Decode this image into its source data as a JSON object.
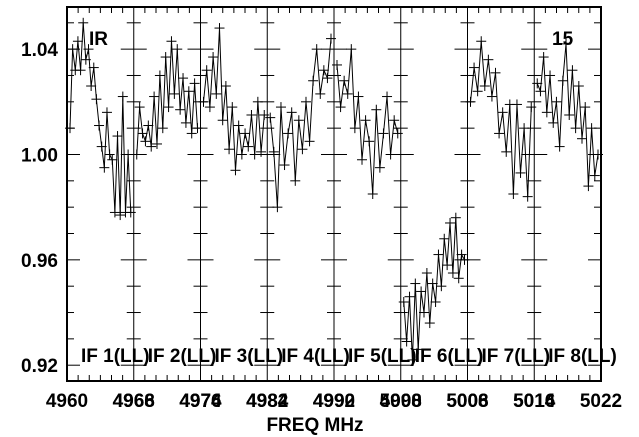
{
  "chart_data": {
    "type": "line",
    "y_ticks": [
      "1.04",
      "1.00",
      "0.96",
      "0.92"
    ],
    "ylim": [
      0.914,
      1.056
    ],
    "xlabel": "FREQ MHz",
    "x_tick_labels": [
      "4960",
      "4966",
      "4968",
      "4974",
      "4976",
      "4982",
      "4984",
      "4990",
      "4992",
      "4998",
      "5000",
      "5006",
      "5008",
      "5014",
      "5016",
      "5022"
    ],
    "annotations": [
      "IR",
      "15"
    ],
    "panels": [
      {
        "label": "IF 1(LL)",
        "x_range": [
          4960,
          4966
        ],
        "values": [
          1.01,
          1.04,
          1.032,
          1.043,
          1.032,
          1.05,
          1.036,
          1.04,
          1.026,
          1.033,
          1.021,
          1.011,
          1.003,
          0.995,
          1.016,
          1.0,
          0.998,
          0.978,
          1.007,
          0.977,
          1.022,
          0.978,
          1.0,
          0.978
        ]
      },
      {
        "label": "IF 2(LL)",
        "x_range": [
          4968,
          4974
        ],
        "values": [
          1.0,
          1.018,
          1.008,
          1.005,
          1.011,
          1.003,
          1.022,
          1.004,
          1.03,
          1.01,
          1.037,
          1.018,
          1.043,
          1.023,
          1.04,
          1.017,
          1.029,
          1.012,
          1.024,
          1.008,
          1.027,
          1.01
        ]
      },
      {
        "label": "IF 3(LL)",
        "x_range": [
          4976,
          4982
        ],
        "values": [
          1.02,
          1.032,
          1.018,
          1.037,
          1.023,
          1.048,
          1.013,
          1.026,
          1.002,
          1.018,
          0.994,
          1.011,
          1.0,
          1.008,
          1.003,
          1.015,
          1.0,
          1.02,
          1.001,
          1.015
        ]
      },
      {
        "label": "IF 4(LL)",
        "x_range": [
          4984,
          4990
        ],
        "values": [
          1.014,
          1.001,
          0.98,
          1.018,
          0.996,
          1.008,
          1.016,
          0.99,
          1.013,
          1.002,
          1.02,
          1.005,
          1.028,
          1.04,
          1.023,
          1.032,
          1.029,
          1.044
        ]
      },
      {
        "label": "IF 5(LL)",
        "x_range": [
          4992,
          4998
        ],
        "values": [
          1.034,
          1.018,
          1.028,
          1.023,
          1.04,
          1.01,
          1.022,
          0.998,
          1.013,
          1.005,
          0.985,
          1.017,
          0.995,
          1.008,
          1.022,
          1.0,
          1.013,
          1.008
        ]
      },
      {
        "label": "IF 6(LL)",
        "x_range": [
          5000,
          5006
        ],
        "values": [
          0.944,
          0.929,
          0.946,
          0.922,
          0.951,
          0.926,
          0.948,
          0.94,
          0.955,
          0.936,
          0.951,
          0.944,
          0.962,
          0.95,
          0.968,
          0.958,
          0.974,
          0.955,
          0.976,
          0.953,
          0.962,
          0.96
        ]
      },
      {
        "label": "IF 7(LL)",
        "x_range": [
          5008,
          5014
        ],
        "values": [
          1.02,
          1.033,
          1.024,
          1.043,
          1.026,
          1.036,
          1.022,
          1.031,
          1.008,
          1.016,
          1.001,
          1.019,
          0.985,
          1.019,
          0.993,
          1.01,
          0.984,
          1.018
        ]
      },
      {
        "label": "IF 8(LL)",
        "x_range": [
          5016,
          5022
        ],
        "values": [
          1.027,
          1.024,
          1.037,
          1.016,
          1.03,
          1.012,
          1.02,
          1.003,
          1.028,
          1.042,
          1.015,
          1.032,
          1.01,
          1.026,
          1.006,
          1.018,
          0.988,
          1.01,
          0.992,
          1.0
        ]
      }
    ]
  }
}
